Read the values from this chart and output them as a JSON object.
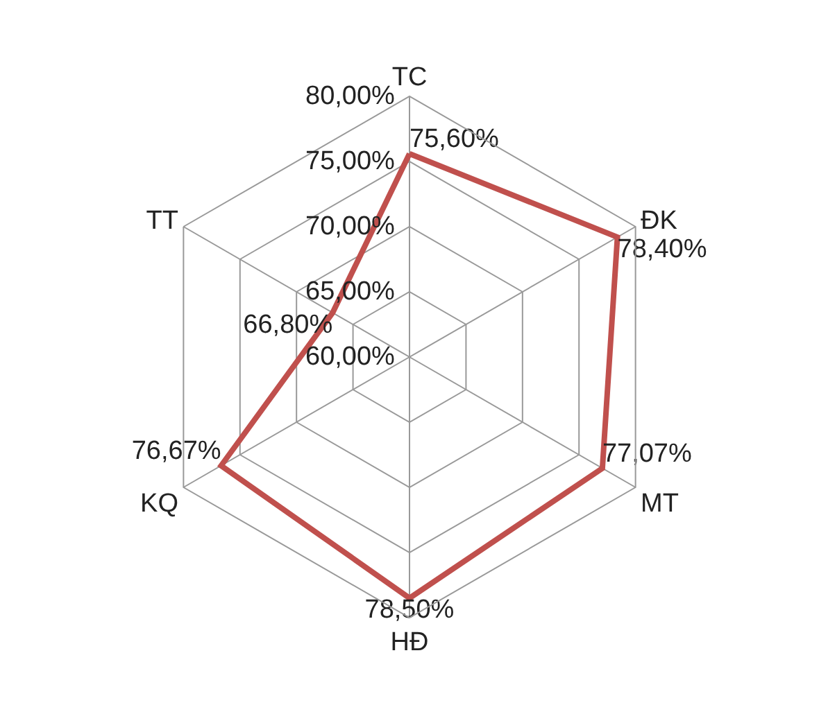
{
  "chart_data": {
    "type": "radar",
    "categories": [
      "TC",
      "ĐK",
      "MT",
      "HĐ",
      "KQ",
      "TT"
    ],
    "series": [
      {
        "color": "#c0504d",
        "values": [
          75.6,
          78.4,
          77.07,
          78.5,
          76.67,
          66.8
        ],
        "value_labels": [
          "75,60%",
          "78,40%",
          "77,07%",
          "78,50%",
          "76,67%",
          "66,80%"
        ]
      }
    ],
    "ylim": [
      60,
      80
    ],
    "yticks": [
      {
        "value": 60,
        "label": "60,00%"
      },
      {
        "value": 65,
        "label": "65,00%"
      },
      {
        "value": 70,
        "label": "70,00%"
      },
      {
        "value": 75,
        "label": "75,00%"
      },
      {
        "value": 80,
        "label": "80,00%"
      }
    ],
    "grid": true,
    "marker": "none",
    "line_style": "solid"
  }
}
